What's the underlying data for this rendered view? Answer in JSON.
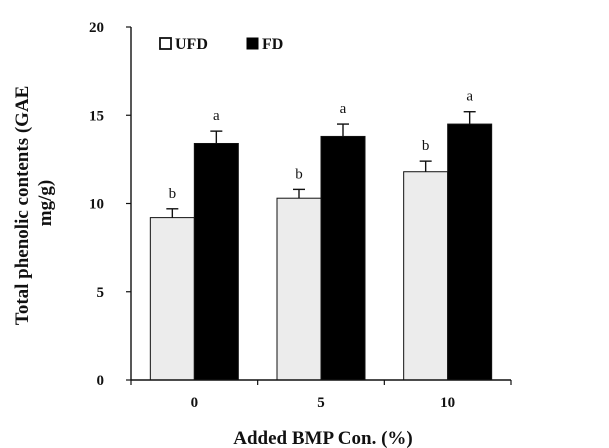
{
  "chart_data": {
    "type": "bar",
    "xlabel": "Added BMP Con. (%)",
    "ylabel_lines": [
      "Total phenolic contents (GAE",
      "mg/g)"
    ],
    "categories": [
      "0",
      "5",
      "10"
    ],
    "ylim": [
      0,
      20
    ],
    "yticks": [
      0,
      5,
      10,
      15,
      20
    ],
    "grid": false,
    "legend_position": "top-left",
    "series": [
      {
        "name": "UFD",
        "color": "#ececec",
        "values": [
          9.2,
          10.3,
          11.8
        ],
        "errors": [
          0.5,
          0.5,
          0.6
        ],
        "significance": [
          "b",
          "b",
          "b"
        ]
      },
      {
        "name": "FD",
        "color": "#000000",
        "values": [
          13.4,
          13.8,
          14.5
        ],
        "errors": [
          0.7,
          0.7,
          0.7
        ],
        "significance": [
          "a",
          "a",
          "a"
        ]
      }
    ]
  }
}
